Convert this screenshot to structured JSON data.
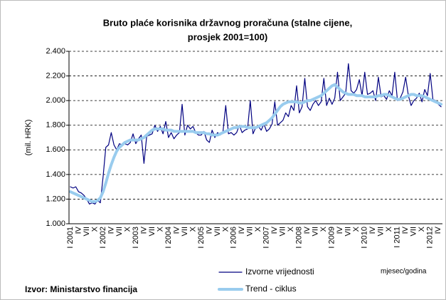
{
  "chart_data": {
    "type": "line",
    "title": [
      "Bruto plaće korisnika državnog proračuna (stalne cijene,",
      "prosjek 2001=100)"
    ],
    "y_label": "(mil. HRK)",
    "x_label": "mjesec/godina",
    "source": "Izvor: Ministarstvo financija",
    "legend": "bottom",
    "grid": true,
    "ylim": [
      1000,
      2400
    ],
    "yticks": [
      {
        "value": 1000,
        "label": "1.000"
      },
      {
        "value": 1200,
        "label": "1.200"
      },
      {
        "value": 1400,
        "label": "1.400"
      },
      {
        "value": 1600,
        "label": "1.600"
      },
      {
        "value": 1800,
        "label": "1.800"
      },
      {
        "value": 2000,
        "label": "2.000"
      },
      {
        "value": 2200,
        "label": "2.200"
      },
      {
        "value": 2400,
        "label": "2.400"
      }
    ],
    "categories": [
      "I 2001",
      null,
      null,
      "IV",
      null,
      null,
      "VII",
      null,
      null,
      "X",
      null,
      null,
      "I 2002",
      null,
      null,
      "IV",
      null,
      null,
      "VII",
      null,
      null,
      "X",
      null,
      null,
      "I 2003",
      null,
      null,
      "IV",
      null,
      null,
      "VII",
      null,
      null,
      "X",
      null,
      null,
      "I 2004",
      null,
      null,
      "IV",
      null,
      null,
      "VII",
      null,
      null,
      "X",
      null,
      null,
      "I 2005",
      null,
      null,
      "IV",
      null,
      null,
      "VII",
      null,
      null,
      "X",
      null,
      null,
      "I 2006",
      null,
      null,
      "IV",
      null,
      null,
      "VII",
      null,
      null,
      "X",
      null,
      null,
      "I 2007",
      null,
      null,
      "IV",
      null,
      null,
      "VII",
      null,
      null,
      "X",
      null,
      null,
      "I 2008",
      null,
      null,
      "IV",
      null,
      null,
      "VII",
      null,
      null,
      "X",
      null,
      null,
      "I 2009",
      null,
      null,
      "IV",
      null,
      null,
      "VII",
      null,
      null,
      "X",
      null,
      null,
      "I 2010",
      null,
      null,
      "IV",
      null,
      null,
      "VII",
      null,
      null,
      "X",
      null,
      null,
      "I 2011",
      null,
      null,
      "IV",
      null,
      null,
      "VII",
      null,
      null,
      "X",
      null,
      null,
      "I 2012",
      null,
      null,
      "IV",
      null
    ],
    "series": [
      {
        "name": "Izvorne vrijednosti",
        "color": "#000080",
        "width": 1.2,
        "values": [
          1300,
          1290,
          1300,
          1260,
          1250,
          1230,
          1200,
          1160,
          1170,
          1160,
          1190,
          1170,
          1380,
          1620,
          1640,
          1740,
          1640,
          1600,
          1650,
          1640,
          1650,
          1640,
          1660,
          1730,
          1650,
          1690,
          1720,
          1490,
          1710,
          1720,
          1730,
          1800,
          1750,
          1790,
          1730,
          1830,
          1700,
          1740,
          1690,
          1720,
          1740,
          1970,
          1720,
          1800,
          1770,
          1790,
          1740,
          1720,
          1720,
          1750,
          1680,
          1660,
          1760,
          1700,
          1740,
          1720,
          1750,
          1960,
          1730,
          1740,
          1720,
          1740,
          1800,
          1740,
          1760,
          1770,
          2000,
          1730,
          1780,
          1790,
          1760,
          1810,
          1750,
          1770,
          1810,
          1990,
          1800,
          1820,
          1840,
          1900,
          1870,
          1960,
          1920,
          2120,
          1900,
          1950,
          2180,
          1950,
          1920,
          1970,
          2000,
          1960,
          1990,
          2180,
          1960,
          2020,
          1970,
          2020,
          2230,
          2000,
          2030,
          2060,
          2300,
          2080,
          2060,
          2090,
          2170,
          2040,
          2230,
          2050,
          2060,
          2080,
          2000,
          2190,
          2030,
          2040,
          2010,
          2080,
          2040,
          2230,
          2000,
          2020,
          2070,
          2190,
          2040,
          1960,
          2000,
          2020,
          2060,
          1990,
          2090,
          2040,
          2220,
          2010,
          2000,
          1970,
          1950
        ]
      },
      {
        "name": "Trend - ciklus",
        "color": "#99ccee",
        "width": 4,
        "values": [
          1260,
          1250,
          1240,
          1230,
          1220,
          1210,
          1200,
          1190,
          1180,
          1180,
          1190,
          1210,
          1260,
          1330,
          1410,
          1480,
          1540,
          1590,
          1620,
          1640,
          1660,
          1670,
          1680,
          1680,
          1680,
          1680,
          1690,
          1700,
          1720,
          1740,
          1760,
          1770,
          1770,
          1770,
          1770,
          1760,
          1760,
          1760,
          1750,
          1750,
          1750,
          1750,
          1750,
          1750,
          1750,
          1750,
          1740,
          1740,
          1740,
          1740,
          1730,
          1730,
          1720,
          1720,
          1720,
          1730,
          1740,
          1750,
          1760,
          1770,
          1780,
          1780,
          1790,
          1790,
          1790,
          1780,
          1780,
          1780,
          1780,
          1790,
          1800,
          1810,
          1820,
          1840,
          1860,
          1890,
          1920,
          1950,
          1970,
          1980,
          1990,
          1990,
          1990,
          1990,
          1980,
          1980,
          1990,
          2000,
          2000,
          2010,
          2020,
          2030,
          2040,
          2060,
          2080,
          2100,
          2120,
          2130,
          2110,
          2090,
          2070,
          2060,
          2050,
          2050,
          2050,
          2040,
          2040,
          2040,
          2030,
          2030,
          2030,
          2030,
          2030,
          2040,
          2040,
          2050,
          2050,
          2040,
          2030,
          2020,
          2010,
          2010,
          2020,
          2030,
          2040,
          2050,
          2050,
          2040,
          2040,
          2040,
          2030,
          2020,
          2010,
          2000,
          1990,
          1980,
          1970
        ]
      }
    ]
  }
}
